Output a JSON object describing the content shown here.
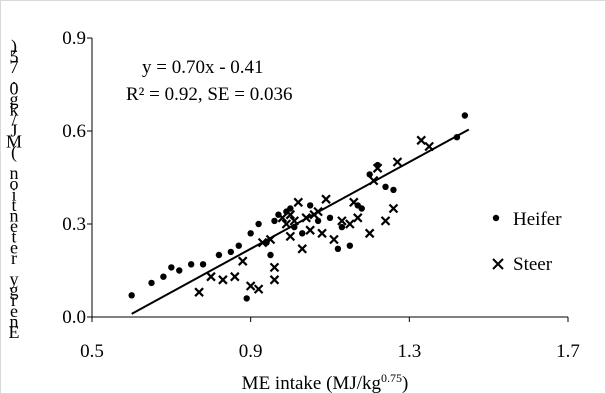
{
  "chart_data": {
    "type": "scatter",
    "title": "",
    "xlabel_main": "ME intake (MJ/kg",
    "xlabel_sup": "0.75",
    "xlabel_tail": ")",
    "ylabel": "Energy retention (MJ/kg0.75)",
    "xlim": [
      0.5,
      1.7
    ],
    "ylim": [
      0.0,
      0.9
    ],
    "xticks": [
      "0.5",
      "0.9",
      "1.3",
      "1.7"
    ],
    "yticks": [
      "0.0",
      "0.3",
      "0.6",
      "0.9"
    ],
    "grid": false,
    "legend_position": "right",
    "annotation": {
      "equation": "y = 0.70x - 0.41",
      "stats": "R² = 0.92, SE = 0.036"
    },
    "trendline": {
      "slope": 0.7,
      "intercept": -0.41,
      "x_range": [
        0.6,
        1.45
      ]
    },
    "series": [
      {
        "name": "Heifer",
        "marker": "dot",
        "points": [
          [
            0.6,
            0.07
          ],
          [
            0.65,
            0.11
          ],
          [
            0.68,
            0.13
          ],
          [
            0.7,
            0.16
          ],
          [
            0.72,
            0.15
          ],
          [
            0.75,
            0.17
          ],
          [
            0.78,
            0.17
          ],
          [
            0.82,
            0.2
          ],
          [
            0.85,
            0.21
          ],
          [
            0.87,
            0.23
          ],
          [
            0.89,
            0.06
          ],
          [
            0.9,
            0.27
          ],
          [
            0.92,
            0.3
          ],
          [
            0.94,
            0.24
          ],
          [
            0.96,
            0.31
          ],
          [
            0.97,
            0.33
          ],
          [
            0.99,
            0.34
          ],
          [
            1.0,
            0.35
          ],
          [
            1.01,
            0.29
          ],
          [
            1.03,
            0.27
          ],
          [
            1.05,
            0.36
          ],
          [
            1.07,
            0.31
          ],
          [
            1.1,
            0.32
          ],
          [
            1.12,
            0.22
          ],
          [
            1.13,
            0.29
          ],
          [
            1.15,
            0.23
          ],
          [
            1.17,
            0.36
          ],
          [
            1.18,
            0.35
          ],
          [
            1.2,
            0.46
          ],
          [
            1.22,
            0.49
          ],
          [
            1.24,
            0.42
          ],
          [
            1.26,
            0.41
          ],
          [
            1.42,
            0.58
          ],
          [
            1.44,
            0.65
          ],
          [
            0.95,
            0.2
          ]
        ]
      },
      {
        "name": "Steer",
        "marker": "x",
        "points": [
          [
            0.77,
            0.08
          ],
          [
            0.8,
            0.13
          ],
          [
            0.83,
            0.12
          ],
          [
            0.86,
            0.13
          ],
          [
            0.88,
            0.18
          ],
          [
            0.9,
            0.1
          ],
          [
            0.92,
            0.09
          ],
          [
            0.93,
            0.24
          ],
          [
            0.95,
            0.25
          ],
          [
            0.96,
            0.12
          ],
          [
            0.96,
            0.16
          ],
          [
            0.98,
            0.32
          ],
          [
            0.99,
            0.3
          ],
          [
            1.0,
            0.26
          ],
          [
            1.0,
            0.33
          ],
          [
            1.01,
            0.31
          ],
          [
            1.02,
            0.37
          ],
          [
            1.03,
            0.22
          ],
          [
            1.04,
            0.32
          ],
          [
            1.05,
            0.28
          ],
          [
            1.06,
            0.33
          ],
          [
            1.07,
            0.34
          ],
          [
            1.08,
            0.27
          ],
          [
            1.09,
            0.38
          ],
          [
            1.11,
            0.25
          ],
          [
            1.13,
            0.31
          ],
          [
            1.15,
            0.3
          ],
          [
            1.16,
            0.37
          ],
          [
            1.17,
            0.32
          ],
          [
            1.2,
            0.27
          ],
          [
            1.21,
            0.44
          ],
          [
            1.22,
            0.48
          ],
          [
            1.24,
            0.31
          ],
          [
            1.26,
            0.35
          ],
          [
            1.27,
            0.5
          ],
          [
            1.33,
            0.57
          ],
          [
            1.35,
            0.55
          ]
        ]
      }
    ]
  }
}
